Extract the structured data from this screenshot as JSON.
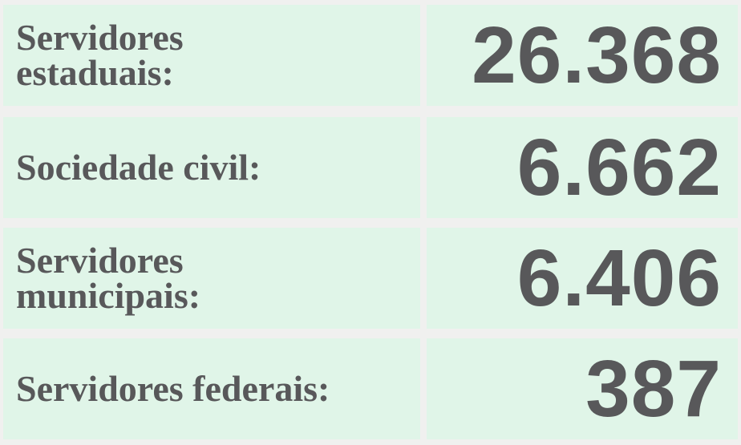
{
  "rows": [
    {
      "label": [
        "Servidores",
        "estaduais:"
      ],
      "value": "26.368"
    },
    {
      "label": [
        "Sociedade civil:"
      ],
      "value": "6.662"
    },
    {
      "label": [
        "Servidores",
        "municipais:"
      ],
      "value": "6.406"
    },
    {
      "label": [
        "Servidores federais:"
      ],
      "value": "387"
    }
  ]
}
